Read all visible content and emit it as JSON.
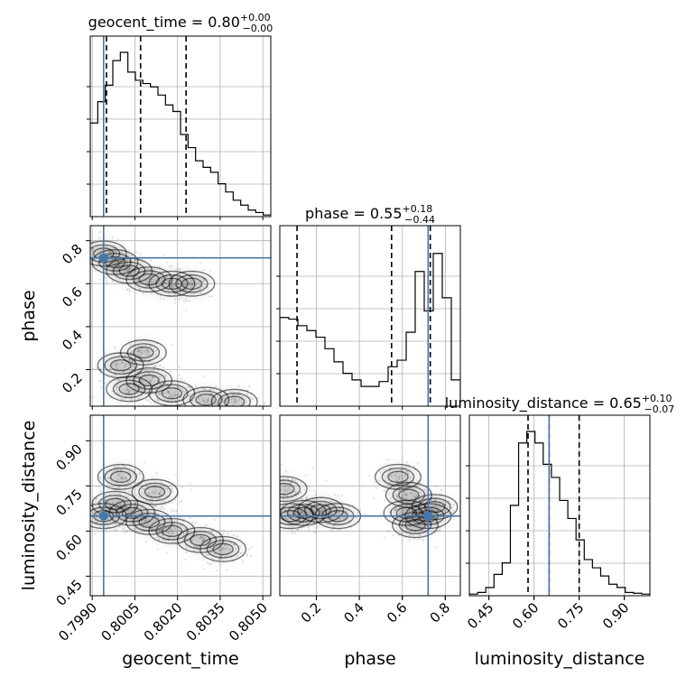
{
  "chart_data": {
    "type": "corner",
    "parameters": [
      "geocent_time",
      "phase",
      "luminosity_distance"
    ],
    "axis_labels": [
      "geocent_time",
      "phase",
      "luminosity_distance"
    ],
    "ranges": {
      "geocent_time": [
        0.79893,
        0.80528
      ],
      "phase": [
        0.03,
        0.87
      ],
      "luminosity_distance": [
        0.385,
        0.985
      ]
    },
    "ticks": {
      "geocent_time": [
        "0.7990",
        "0.8005",
        "0.8020",
        "0.8035",
        "0.8050"
      ],
      "phase": [
        "0.2",
        "0.4",
        "0.6",
        "0.8"
      ],
      "luminosity_distance": [
        "0.45",
        "0.60",
        "0.75",
        "0.90"
      ]
    },
    "titles": [
      {
        "param": "geocent_time",
        "prefix": "geocent_time = ",
        "value": "0.80",
        "plus": "+0.00",
        "minus": "−0.00"
      },
      {
        "param": "phase",
        "prefix": "phase = ",
        "value": "0.55",
        "plus": "+0.18",
        "minus": "−0.44"
      },
      {
        "param": "luminosity_distance",
        "prefix": "luminosity_distance = ",
        "value": "0.65",
        "plus": "+0.10",
        "minus": "−0.07"
      }
    ],
    "truths": {
      "geocent_time": 0.7994,
      "phase": 0.72,
      "luminosity_distance": 0.65
    },
    "quantiles": {
      "geocent_time": [
        0.7995,
        0.8007,
        0.8023
      ],
      "phase": [
        0.11,
        0.55,
        0.73
      ],
      "luminosity_distance": [
        0.58,
        0.65,
        0.75
      ]
    },
    "histograms": {
      "geocent_time": [
        0.57,
        0.7,
        0.8,
        0.95,
        1.0,
        0.88,
        0.83,
        0.81,
        0.79,
        0.74,
        0.68,
        0.64,
        0.5,
        0.42,
        0.34,
        0.3,
        0.27,
        0.2,
        0.15,
        0.1,
        0.07,
        0.04,
        0.025,
        0.01
      ],
      "phase": [
        0.54,
        0.53,
        0.49,
        0.46,
        0.42,
        0.35,
        0.27,
        0.2,
        0.16,
        0.12,
        0.12,
        0.15,
        0.24,
        0.28,
        0.45,
        0.82,
        0.58,
        0.93,
        0.66,
        0.16
      ],
      "luminosity_distance": [
        0.01,
        0.02,
        0.05,
        0.13,
        0.2,
        0.55,
        0.93,
        1.0,
        0.93,
        0.8,
        0.72,
        0.58,
        0.47,
        0.34,
        0.22,
        0.17,
        0.12,
        0.07,
        0.05,
        0.02,
        0.015,
        0.01
      ]
    },
    "density_blobs": [
      {
        "pair": [
          "phase",
          "geocent_time"
        ],
        "points": [
          [
            0.7994,
            0.74
          ],
          [
            0.7998,
            0.7
          ],
          [
            0.8003,
            0.66
          ],
          [
            0.801,
            0.62
          ],
          [
            0.8018,
            0.6
          ],
          [
            0.8025,
            0.6
          ],
          [
            0.8003,
            0.11
          ],
          [
            0.801,
            0.15
          ],
          [
            0.8018,
            0.09
          ],
          [
            0.803,
            0.06
          ],
          [
            0.804,
            0.05
          ],
          [
            0.8,
            0.22
          ],
          [
            0.8008,
            0.28
          ]
        ]
      },
      {
        "pair": [
          "luminosity_distance",
          "geocent_time"
        ],
        "points": [
          [
            0.7994,
            0.65
          ],
          [
            0.7998,
            0.69
          ],
          [
            0.8004,
            0.66
          ],
          [
            0.801,
            0.63
          ],
          [
            0.8018,
            0.6
          ],
          [
            0.8028,
            0.57
          ],
          [
            0.8036,
            0.54
          ],
          [
            0.8,
            0.78
          ],
          [
            0.8012,
            0.73
          ]
        ]
      },
      {
        "pair": [
          "luminosity_distance",
          "phase"
        ],
        "points": [
          [
            0.08,
            0.65
          ],
          [
            0.14,
            0.66
          ],
          [
            0.22,
            0.67
          ],
          [
            0.3,
            0.65
          ],
          [
            0.62,
            0.66
          ],
          [
            0.63,
            0.72
          ],
          [
            0.66,
            0.62
          ],
          [
            0.72,
            0.65
          ],
          [
            0.75,
            0.68
          ],
          [
            0.05,
            0.74
          ],
          [
            0.58,
            0.78
          ]
        ]
      }
    ],
    "grid": true
  }
}
